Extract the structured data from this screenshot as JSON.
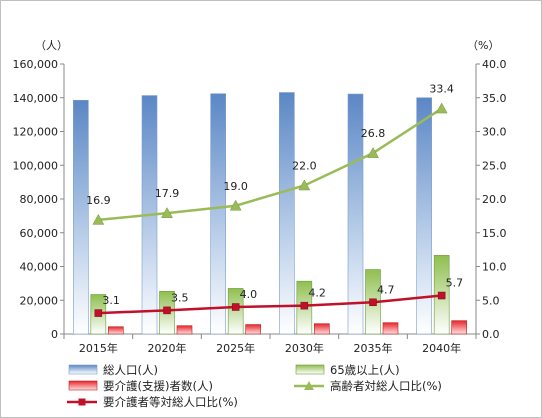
{
  "chart_data": {
    "type": "bar",
    "left_axis_unit": "（人）",
    "right_axis_unit": "（%）",
    "categories": [
      "2015年",
      "2020年",
      "2025年",
      "2030年",
      "2035年",
      "2040年"
    ],
    "y_left": {
      "min": 0,
      "max": 160000,
      "ticks": [
        0,
        20000,
        40000,
        60000,
        80000,
        100000,
        120000,
        140000,
        160000
      ],
      "tick_labels": [
        "0",
        "20,000",
        "40,000",
        "60,000",
        "80,000",
        "100,000",
        "120,000",
        "140,000",
        "160,000"
      ]
    },
    "y_right": {
      "min": 0,
      "max": 40,
      "ticks": [
        0,
        5,
        10,
        15,
        20,
        25,
        30,
        35,
        40
      ],
      "tick_labels": [
        "0.0",
        "5.0",
        "10.0",
        "15.0",
        "20.0",
        "25.0",
        "30.0",
        "35.0",
        "40.0"
      ]
    },
    "grid": false,
    "series": [
      {
        "name": "総人口(人)",
        "kind": "bar",
        "axis": "left",
        "color": "#4f81bd",
        "values": [
          138500,
          141300,
          142400,
          143100,
          142200,
          140000
        ]
      },
      {
        "name": "65歳以上(人)",
        "kind": "bar",
        "axis": "left",
        "color": "#9bbb59",
        "values": [
          23400,
          25300,
          27000,
          31300,
          38200,
          46600
        ]
      },
      {
        "name": "要介護(支援)者数(人)",
        "kind": "bar",
        "axis": "left",
        "color": "#e02020",
        "values": [
          4300,
          4900,
          5600,
          6100,
          6700,
          7900
        ]
      },
      {
        "name": "高齢者対総人口比(%)",
        "kind": "line",
        "axis": "right",
        "color": "#9bbb59",
        "marker": "triangle",
        "values": [
          16.9,
          17.9,
          19.0,
          22.0,
          26.8,
          33.4
        ],
        "labels": [
          "16.9",
          "17.9",
          "19.0",
          "22.0",
          "26.8",
          "33.4"
        ]
      },
      {
        "name": "要介護者等対総人口比(%)",
        "kind": "line",
        "axis": "right",
        "color": "#c0102a",
        "marker": "square",
        "values": [
          3.1,
          3.5,
          4.0,
          4.2,
          4.7,
          5.7
        ],
        "labels": [
          "3.1",
          "3.5",
          "4.0",
          "4.2",
          "4.7",
          "5.7"
        ]
      }
    ],
    "legend_placement": "bottom"
  }
}
